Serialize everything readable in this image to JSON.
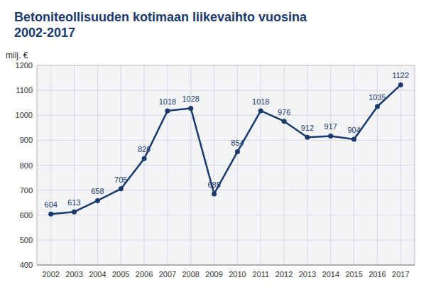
{
  "chart_data": {
    "type": "line",
    "title": "Betoniteollisuuden kotimaan liikevaihto vuosina 2002-2017",
    "y_label": "milj. €",
    "x": [
      2002,
      2003,
      2004,
      2005,
      2006,
      2007,
      2008,
      2009,
      2010,
      2011,
      2012,
      2013,
      2014,
      2015,
      2016,
      2017
    ],
    "values": [
      604,
      613,
      658,
      705,
      826,
      1018,
      1028,
      685,
      854,
      1018,
      976,
      912,
      917,
      904,
      1035,
      1122
    ],
    "color": "#1b3a6b",
    "marker": "circle",
    "xlim": [
      2001.4,
      2017.6
    ],
    "xticks": [
      2002,
      2003,
      2004,
      2005,
      2006,
      2007,
      2008,
      2009,
      2010,
      2011,
      2012,
      2013,
      2014,
      2015,
      2016,
      2017
    ],
    "ylim": [
      400,
      1200
    ],
    "yticks": [
      400,
      500,
      600,
      700,
      800,
      900,
      1000,
      1100,
      1200
    ],
    "grid": true,
    "data_labels": true
  }
}
